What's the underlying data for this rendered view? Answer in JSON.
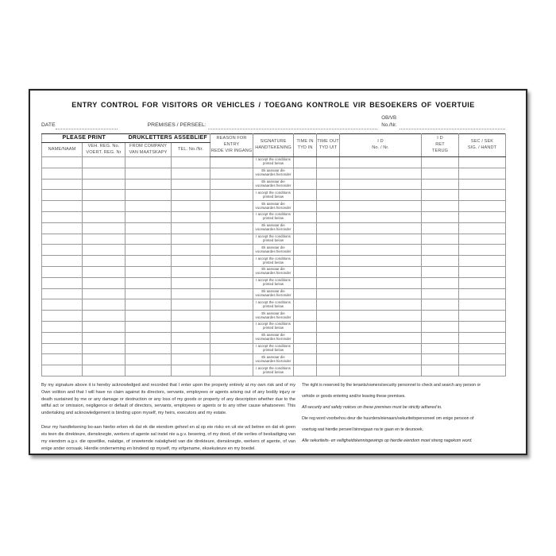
{
  "palette": {
    "ink": "#2c2c2c",
    "paper": "#ffffff",
    "rule_line": "#999999"
  },
  "document": {
    "title": "ENTRY CONTROL FOR VISITORS OR VEHICLES / TOEGANG KONTROLE VIR BESOEKERS OF VOERTUIE",
    "fields": {
      "date_label": "DATE",
      "premises_label": "PREMISES / PERSEEL:",
      "obvb_top": "OB/VB",
      "obvb_bottom": "No./Nr."
    }
  },
  "table": {
    "group_headers": {
      "please_print": "PLEASE PRINT",
      "drukletters": "DRUKLETTERS ASSEBLIEF"
    },
    "columns": [
      {
        "id": "name",
        "lines": [
          "NAME/NAAM"
        ]
      },
      {
        "id": "veh-reg",
        "lines": [
          "VEH. REG. No.",
          "VOERT. REG. Nr"
        ]
      },
      {
        "id": "company",
        "lines": [
          "FROM COMPANY",
          "VAN MAATSKAPY"
        ]
      },
      {
        "id": "tel",
        "lines": [
          "TEL. No./Nr."
        ]
      },
      {
        "id": "reason",
        "lines": [
          "REASON FOR",
          "ENTRY",
          "REDE VIR INGANG"
        ]
      },
      {
        "id": "signature",
        "lines": [
          "SIGNATURE",
          "HANDTEKENING"
        ]
      },
      {
        "id": "time-in",
        "lines": [
          "TIME IN",
          "TYD IN"
        ]
      },
      {
        "id": "time-out",
        "lines": [
          "TIME OUT",
          "TYD UIT"
        ]
      },
      {
        "id": "id-no",
        "lines": [
          "I D",
          "No. / Nr."
        ]
      },
      {
        "id": "id-ret",
        "lines": [
          "I D",
          "RET",
          "TERUG"
        ]
      },
      {
        "id": "sec-sig",
        "lines": [
          "SEC / SEK",
          "SIG. / HANDT"
        ]
      }
    ],
    "signature_texts": {
      "en": [
        "I accept the conditions",
        "printed below"
      ],
      "af": [
        "Ek aanvaar die",
        "voorwaardes hieronder"
      ]
    },
    "rows": [
      "en",
      "af",
      "af",
      "en",
      "af",
      "en",
      "af",
      "en",
      "af",
      "en",
      "af",
      "en",
      "af",
      "en",
      "af",
      "en",
      "af",
      "en",
      "af",
      "en"
    ]
  },
  "footer": {
    "left_paragraphs": [
      "By my signature above it is hereby acknowledged and recorded that I enter upon the property entirely at my own risk and of my Own volition and that I will have no claim against its directors, servants, employees or agents arising out of any bodily injury or death sustained by me or any damage or destruction or any loss of my goods or property of any description whether due to the wilful act or omission, negligence or default of directors, servants, employees or agents or to any other cause whatsoever. This undertaking and acknowledgement is binding upon myself, my heirs, executors and my estate.",
      "Deur my handtekening bo-aan hierbo erken ek dat ek die eiendom geheel en al op eie risko en uit eie wil betree en dat ek geen eis teen die direkteure, diensknegte, werkers of agente sal instel nie a.g.v. besering, of my dood, of die verlies of beskadiging van my eiendom a.g.v. die opsetlike, nalatige, of onwetende nalatigheid van die direkteure, diensknegte, werkers of agente, of van enige ander oorsaak. Hierdie onderneming en bindend op myself, my erfgename, eksekuteure en my boedel."
    ],
    "right_lines": [
      {
        "text": "The right is reserved by the tenants/owners/security personnel to check and search any person or",
        "italic": false
      },
      {
        "text": "vehicle or goods entering and/or leaving these premises.",
        "italic": false
      },
      {
        "text": "All security and safety notices on these premises must be strictly adhered to.",
        "italic": true
      },
      {
        "text": "Die reg word voorbehou deur die huurders/eienaars/sekuriteitspersoneel om enige persoon of",
        "italic": false
      },
      {
        "text": "voertuig wat hierdie perseel binnegaan na te gaan en te deursoek.",
        "italic": false
      },
      {
        "text": "Alle sekuriteits- en veiligheidskennisgewings op hierdie eiendom moet streng nagekom word.",
        "italic": true
      }
    ]
  }
}
